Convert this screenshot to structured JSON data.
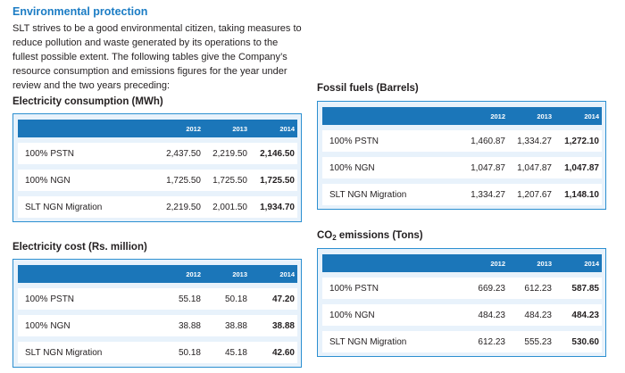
{
  "section": {
    "title": "Environmental protection",
    "intro": "SLT strives to be a good environmental citizen, taking measures to reduce pollution and waste generated by its operations to the fullest possible extent. The following tables give the Company’s resource consumption and emissions figures for the year under review and the two years preceding:"
  },
  "tables": {
    "electricity_consumption": {
      "title": "Electricity consumption (MWh)",
      "years": [
        "2012",
        "2013",
        "2014"
      ],
      "rows": [
        {
          "label": "100% PSTN",
          "values": [
            "2,437.50",
            "2,219.50",
            "2,146.50"
          ]
        },
        {
          "label": "100% NGN",
          "values": [
            "1,725.50",
            "1,725.50",
            "1,725.50"
          ]
        },
        {
          "label": "SLT NGN Migration",
          "values": [
            "2,219.50",
            "2,001.50",
            "1,934.70"
          ]
        }
      ]
    },
    "electricity_cost": {
      "title": "Electricity cost (Rs. million)",
      "years": [
        "2012",
        "2013",
        "2014"
      ],
      "rows": [
        {
          "label": "100% PSTN",
          "values": [
            "55.18",
            "50.18",
            "47.20"
          ]
        },
        {
          "label": "100% NGN",
          "values": [
            "38.88",
            "38.88",
            "38.88"
          ]
        },
        {
          "label": "SLT NGN Migration",
          "values": [
            "50.18",
            "45.18",
            "42.60"
          ]
        }
      ]
    },
    "fossil_fuels": {
      "title": "Fossil fuels (Barrels)",
      "years": [
        "2012",
        "2013",
        "2014"
      ],
      "rows": [
        {
          "label": "100% PSTN",
          "values": [
            "1,460.87",
            "1,334.27",
            "1,272.10"
          ]
        },
        {
          "label": "100% NGN",
          "values": [
            "1,047.87",
            "1,047.87",
            "1,047.87"
          ]
        },
        {
          "label": "SLT NGN Migration",
          "values": [
            "1,334.27",
            "1,207.67",
            "1,148.10"
          ]
        }
      ]
    },
    "co2_emissions": {
      "title_main": "CO",
      "title_sub": "2",
      "title_rest": " emissions (Tons)",
      "years": [
        "2012",
        "2013",
        "2014"
      ],
      "rows": [
        {
          "label": "100% PSTN",
          "values": [
            "669.23",
            "612.23",
            "587.85"
          ]
        },
        {
          "label": "100% NGN",
          "values": [
            "484.23",
            "484.23",
            "484.23"
          ]
        },
        {
          "label": "SLT NGN Migration",
          "values": [
            "612.23",
            "555.23",
            "530.60"
          ]
        }
      ]
    }
  },
  "colors": {
    "heading_blue": "#1b7cc4",
    "header_fill": "#1b76b9",
    "panel_fill": "#e8f2fb",
    "panel_border": "#2c8fd0"
  }
}
